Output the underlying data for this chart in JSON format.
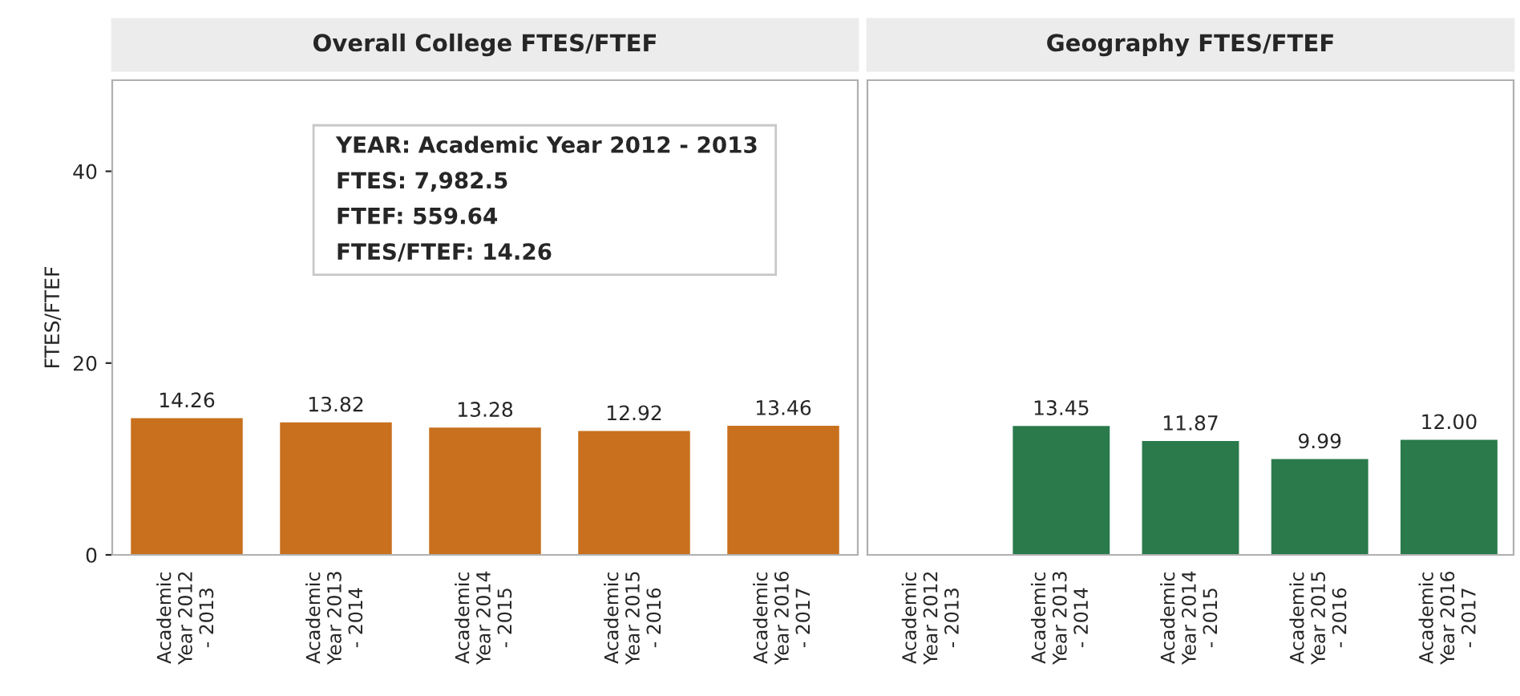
{
  "chart_data": [
    {
      "type": "bar",
      "title": "Overall College FTES/FTEF",
      "ylabel": "FTES/FTEF",
      "categories": [
        "Academic Year 2012 - 2013",
        "Academic Year 2013 - 2014",
        "Academic Year 2014 - 2015",
        "Academic Year 2015 - 2016",
        "Academic Year 2016 - 2017"
      ],
      "series": [
        {
          "color": "#c8701e",
          "values": [
            14.26,
            13.82,
            13.28,
            12.92,
            13.46
          ],
          "value_labels": [
            "14.26",
            "13.82",
            "13.28",
            "12.92",
            "13.46"
          ]
        }
      ],
      "ylim": [
        0,
        49.5
      ],
      "yticks": [
        0,
        20,
        40
      ],
      "grid": false,
      "legend": false,
      "annotations": [
        "YEAR: Academic Year 2012 - 2013",
        "FTES: 7,982.5",
        "FTEF: 559.64",
        "FTES/FTEF: 14.26"
      ]
    },
    {
      "type": "bar",
      "title": "Geography FTES/FTEF",
      "categories": [
        "Academic Year 2012 - 2013",
        "Academic Year 2013 - 2014",
        "Academic Year 2014 - 2015",
        "Academic Year 2015 - 2016",
        "Academic Year 2016 - 2017"
      ],
      "series": [
        {
          "color": "#2a7a4b",
          "values": [
            null,
            13.45,
            11.87,
            9.99,
            12.0
          ],
          "value_labels": [
            null,
            "13.45",
            "11.87",
            "9.99",
            "12.00"
          ]
        }
      ],
      "ylim": [
        0,
        49.5
      ],
      "yticks": [
        0,
        20,
        40
      ],
      "grid": false,
      "legend": false,
      "tick_labels": "x"
    }
  ]
}
